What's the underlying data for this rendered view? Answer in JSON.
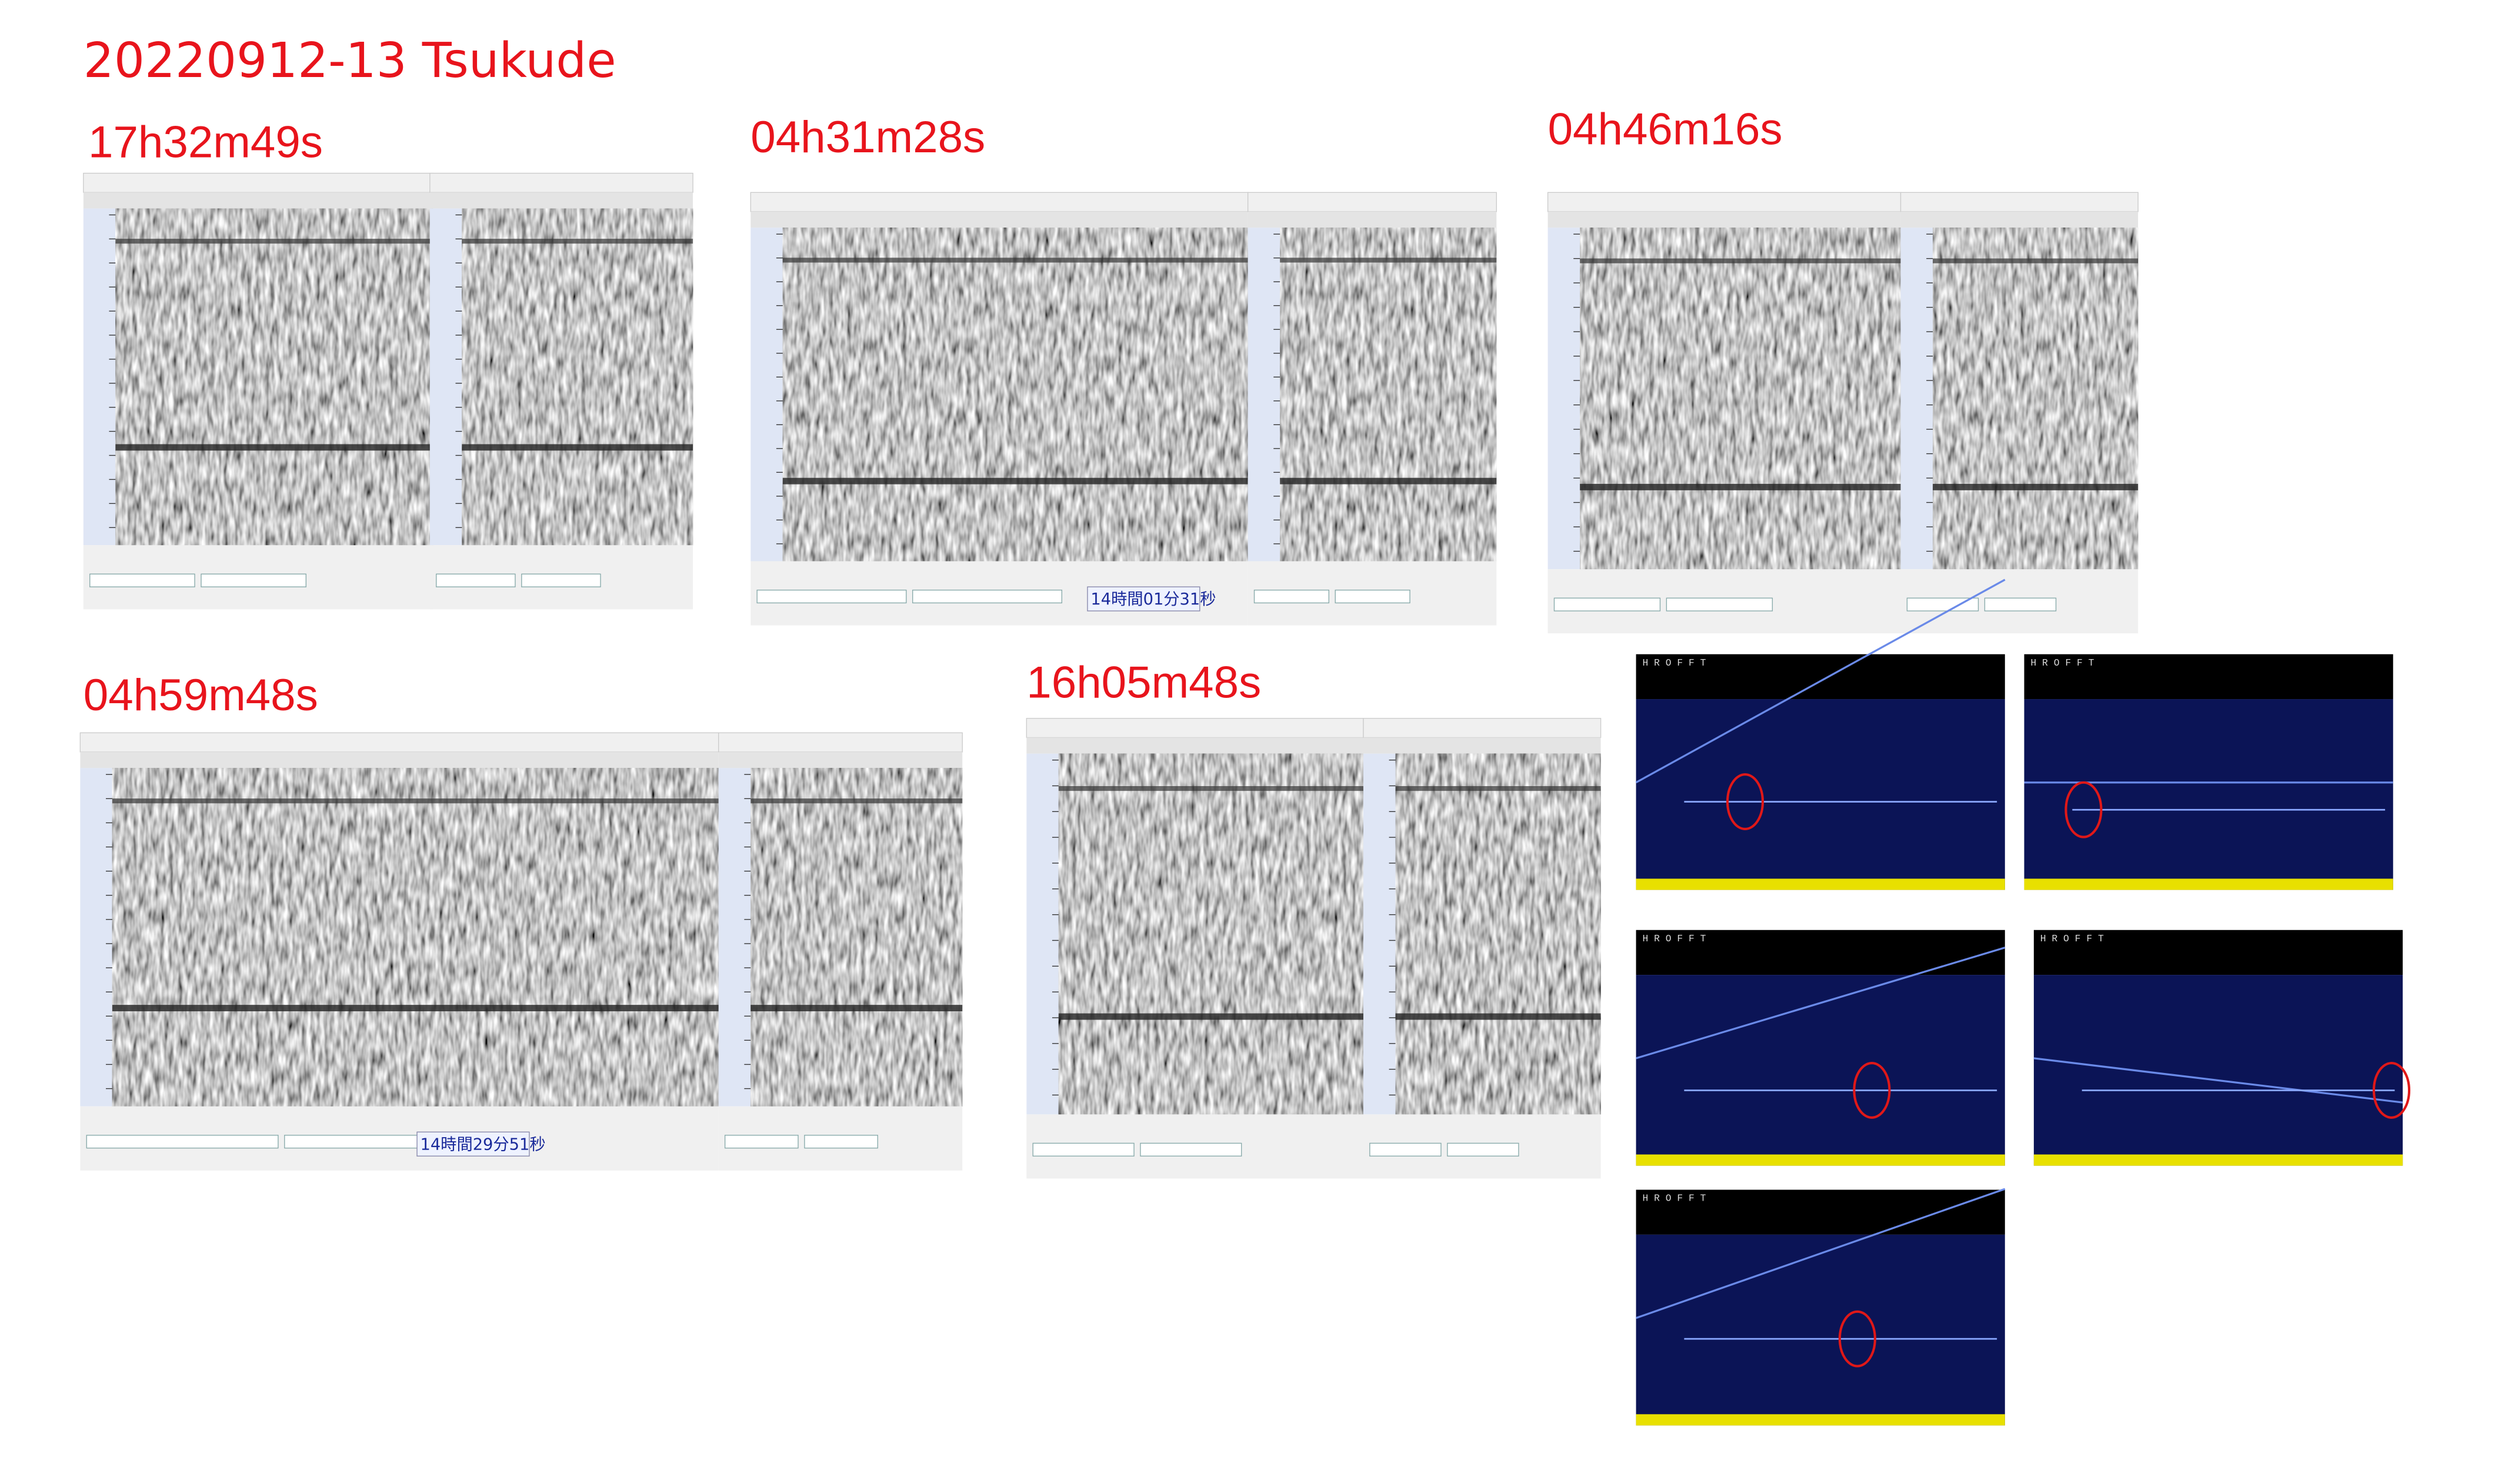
{
  "title": "20220912-13  Tsukude",
  "events": [
    {
      "time": "17h32m49s"
    },
    {
      "time": "04h31m28s",
      "readout": "14時間01分31秒"
    },
    {
      "time": "04h46m16s"
    },
    {
      "time": "04h59m48s",
      "readout": "14時間29分51秒"
    },
    {
      "time": "16h05m48s"
    }
  ],
  "hrofft": {
    "logo": "H R O F F T"
  }
}
